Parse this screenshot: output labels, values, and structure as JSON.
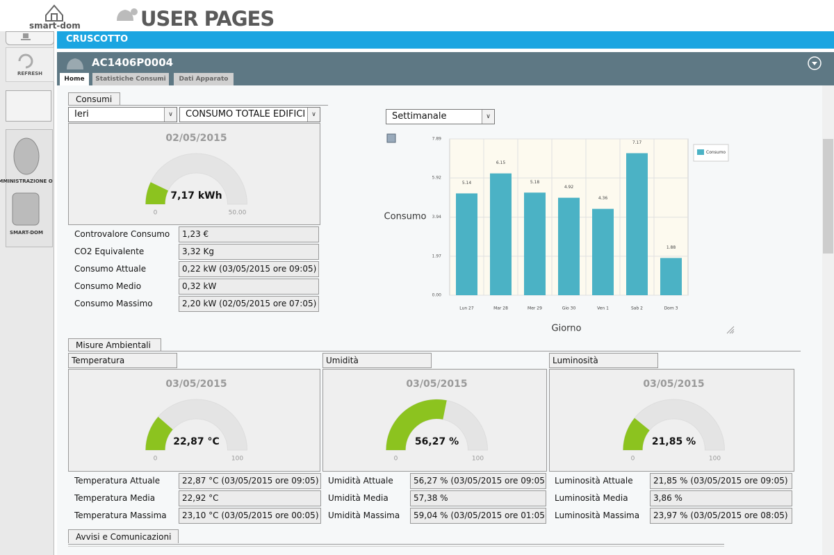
{
  "header": {
    "brand": "smart-dom",
    "title": "USER PAGES"
  },
  "sidebar": {
    "refresh": "REFRESH",
    "admin": "AMMINISTRAZIONE O",
    "smartdom": "SMART-DOM"
  },
  "bar_title": "CRUSCOTTO",
  "device": "AC1406P0004",
  "tabs": [
    "Home",
    "Statistiche Consumi",
    "Dati Apparato"
  ],
  "consumi": {
    "title": "Consumi",
    "period": "Ieri",
    "scope": "CONSUMO TOTALE EDIFICIO",
    "gauge": {
      "date": "02/05/2015",
      "value": 7.17,
      "value_label": "7,17 kWh",
      "min": 0,
      "max": {
        "value": 50,
        "label": "50.00"
      }
    },
    "rows": [
      [
        "Controvalore Consumo",
        "1,23 €"
      ],
      [
        "CO2 Equivalente",
        "3,32 Kg"
      ],
      [
        "Consumo Attuale",
        "0,22 kW (03/05/2015 ore 09:05)"
      ],
      [
        "Consumo Medio",
        "0,32 kW"
      ],
      [
        "Consumo Massimo",
        "2,20 kW (02/05/2015 ore 07:05)"
      ]
    ]
  },
  "chart_select": "Settimanale",
  "chart_data": {
    "type": "bar",
    "categories": [
      "Lun 27",
      "Mar 28",
      "Mer 29",
      "Gio 30",
      "Ven 1",
      "Sab 2",
      "Dom 3"
    ],
    "series": [
      {
        "name": "Consumo",
        "color": "#4bb2c5",
        "values": [
          5.14,
          6.15,
          5.18,
          4.92,
          4.36,
          7.17,
          1.88
        ]
      }
    ],
    "y_label": "Consumo",
    "x_label": "Giorno",
    "ylim": [
      0,
      7.89
    ],
    "yticks": [
      {
        "value": 0,
        "label": "0.00"
      },
      1.97,
      3.94,
      5.92,
      7.89
    ],
    "grid": true,
    "legend": "top-right"
  },
  "ambientali": {
    "title": "Misure Ambientali",
    "panels": [
      {
        "title": "Temperatura",
        "gauge": {
          "date": "03/05/2015",
          "value": 22.87,
          "value_label": "22,87 °C",
          "min": 0,
          "max": 100
        },
        "rows": [
          [
            "Temperatura Attuale",
            "22,87 °C (03/05/2015 ore 09:05)"
          ],
          [
            "Temperatura Media",
            "22,92 °C"
          ],
          [
            "Temperatura Massima",
            "23,10 °C (03/05/2015 ore 00:05)"
          ]
        ]
      },
      {
        "title": "Umidità",
        "gauge": {
          "date": "03/05/2015",
          "value": 56.27,
          "value_label": "56,27 %",
          "min": 0,
          "max": 100
        },
        "rows": [
          [
            "Umidità Attuale",
            "56,27 % (03/05/2015 ore 09:05)"
          ],
          [
            "Umidità Media",
            "57,38 %"
          ],
          [
            "Umidità Massima",
            "59,04 % (03/05/2015 ore 01:05)"
          ]
        ]
      },
      {
        "title": "Luminosità",
        "gauge": {
          "date": "03/05/2015",
          "value": 21.85,
          "value_label": "21,85 %",
          "min": 0,
          "max": 100
        },
        "rows": [
          [
            "Luminosità Attuale",
            "21,85 % (03/05/2015 ore 09:05)"
          ],
          [
            "Luminosità Media",
            "3,86 %"
          ],
          [
            "Luminosità Massima",
            "23,97 % (03/05/2015 ore 08:05)"
          ]
        ]
      }
    ]
  },
  "avvisi": "Avvisi e Comunicazioni"
}
